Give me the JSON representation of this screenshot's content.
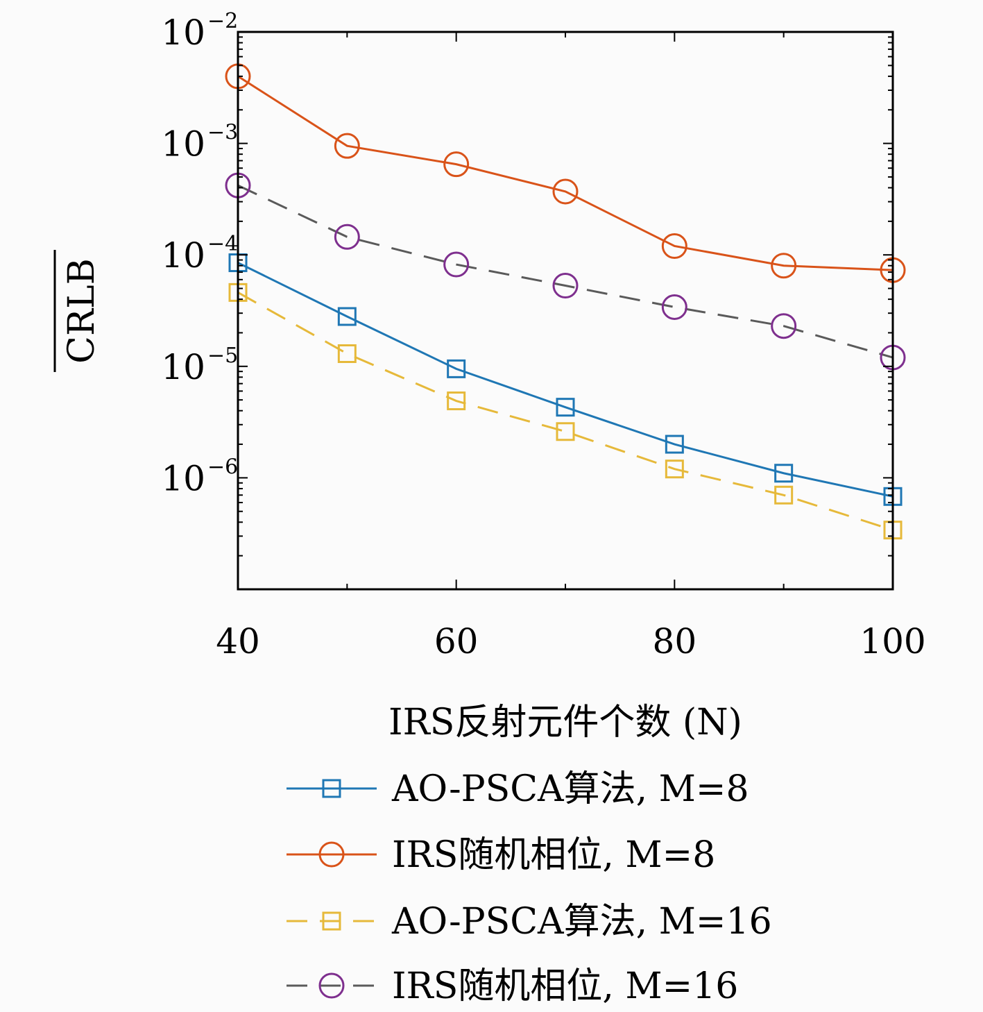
{
  "chart_data": {
    "type": "line",
    "xlabel": "IRS反射元件个数 (N)",
    "ylabel": "CRLB",
    "x_ticks": [
      40,
      60,
      80,
      100
    ],
    "y_ticks": [
      {
        "base": "10",
        "exp": "−2",
        "value": 0.01
      },
      {
        "base": "10",
        "exp": "−3",
        "value": 0.001
      },
      {
        "base": "10",
        "exp": "−4",
        "value": 0.0001
      },
      {
        "base": "10",
        "exp": "−5",
        "value": 1e-05
      },
      {
        "base": "10",
        "exp": "−6",
        "value": 1e-06
      }
    ],
    "xlim": [
      40,
      100
    ],
    "ylim": [
      1e-07,
      0.01
    ],
    "yscale": "log",
    "grid": false,
    "legend_position": "bottom",
    "x": [
      40,
      50,
      60,
      70,
      80,
      90,
      100
    ],
    "series": [
      {
        "name": "AO-PSCA算法, M=8",
        "color": "#1f77b4",
        "marker": "square",
        "dash": "solid",
        "values": [
          8.5e-05,
          2.8e-05,
          9.5e-06,
          4.3e-06,
          2e-06,
          1.1e-06,
          6.8e-07
        ]
      },
      {
        "name": "IRS随机相位, M=8",
        "color": "#d95319",
        "marker": "circle",
        "dash": "solid",
        "values": [
          0.004,
          0.00095,
          0.00065,
          0.00037,
          0.00012,
          8e-05,
          7.3e-05
        ]
      },
      {
        "name": "AO-PSCA算法, M=16",
        "color": "#e6b93a",
        "marker": "square",
        "dash": "dashed",
        "values": [
          4.6e-05,
          1.3e-05,
          4.9e-06,
          2.6e-06,
          1.2e-06,
          7e-07,
          3.4e-07
        ]
      },
      {
        "name": "IRS随机相位, M=16",
        "color": "#5a5a5a",
        "marker_color": "#7e2f8e",
        "marker": "circle",
        "dash": "dashed",
        "values": [
          0.00042,
          0.000145,
          8.2e-05,
          5.3e-05,
          3.4e-05,
          2.3e-05,
          1.2e-05
        ]
      }
    ]
  }
}
